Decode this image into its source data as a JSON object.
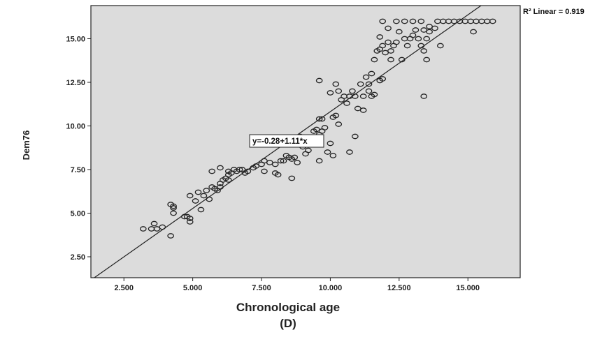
{
  "chart_data": {
    "type": "scatter",
    "xlabel": "Chronological age",
    "xlabel_sub": "(D)",
    "ylabel": "Dem76",
    "xlim": [
      1.3,
      16.9
    ],
    "ylim": [
      1.3,
      16.9
    ],
    "xticks": [
      "2.500",
      "5.000",
      "7.500",
      "10.000",
      "12.500",
      "15.000"
    ],
    "yticks": [
      "2.50",
      "5.00",
      "7.50",
      "10.00",
      "12.50",
      "15.00"
    ],
    "grid": false,
    "fit": {
      "label": "y=-0.28+1.11*x",
      "r2_label": "R² Linear = 0.919",
      "intercept": -0.28,
      "slope": 1.11
    },
    "points": [
      [
        3.2,
        4.1
      ],
      [
        3.5,
        4.1
      ],
      [
        3.6,
        4.4
      ],
      [
        3.7,
        4.1
      ],
      [
        3.9,
        4.2
      ],
      [
        4.2,
        3.7
      ],
      [
        4.3,
        5.0
      ],
      [
        4.3,
        5.3
      ],
      [
        4.2,
        5.5
      ],
      [
        4.3,
        5.4
      ],
      [
        4.7,
        4.8
      ],
      [
        4.8,
        4.8
      ],
      [
        4.9,
        4.7
      ],
      [
        4.9,
        4.5
      ],
      [
        4.9,
        6.0
      ],
      [
        5.1,
        5.7
      ],
      [
        5.2,
        6.2
      ],
      [
        5.3,
        5.2
      ],
      [
        5.4,
        6.0
      ],
      [
        5.5,
        6.3
      ],
      [
        5.6,
        5.8
      ],
      [
        5.7,
        6.5
      ],
      [
        5.8,
        6.4
      ],
      [
        6.0,
        6.7
      ],
      [
        6.1,
        6.9
      ],
      [
        6.0,
        6.5
      ],
      [
        5.9,
        6.3
      ],
      [
        5.7,
        7.4
      ],
      [
        6.2,
        7.0
      ],
      [
        6.3,
        7.2
      ],
      [
        6.3,
        7.4
      ],
      [
        6.4,
        7.3
      ],
      [
        6.5,
        7.5
      ],
      [
        6.6,
        7.4
      ],
      [
        6.7,
        7.5
      ],
      [
        6.8,
        7.5
      ],
      [
        6.9,
        7.3
      ],
      [
        7.0,
        7.4
      ],
      [
        7.2,
        7.6
      ],
      [
        7.3,
        7.7
      ],
      [
        6.3,
        6.9
      ],
      [
        6.0,
        7.6
      ],
      [
        7.5,
        7.8
      ],
      [
        7.6,
        8.0
      ],
      [
        7.6,
        7.4
      ],
      [
        7.8,
        7.9
      ],
      [
        8.0,
        7.8
      ],
      [
        8.0,
        7.3
      ],
      [
        8.1,
        7.2
      ],
      [
        8.2,
        8.0
      ],
      [
        8.3,
        8.0
      ],
      [
        8.4,
        8.3
      ],
      [
        8.5,
        8.2
      ],
      [
        8.6,
        8.1
      ],
      [
        8.7,
        8.2
      ],
      [
        8.8,
        7.9
      ],
      [
        8.6,
        7.0
      ],
      [
        8.8,
        9.0
      ],
      [
        8.9,
        9.4
      ],
      [
        9.0,
        8.8
      ],
      [
        9.1,
        8.4
      ],
      [
        9.2,
        8.6
      ],
      [
        9.3,
        9.2
      ],
      [
        9.4,
        9.7
      ],
      [
        9.5,
        9.8
      ],
      [
        9.6,
        9.5
      ],
      [
        9.7,
        9.7
      ],
      [
        9.8,
        9.9
      ],
      [
        9.6,
        10.4
      ],
      [
        9.7,
        10.4
      ],
      [
        9.6,
        8.0
      ],
      [
        9.9,
        8.5
      ],
      [
        10.0,
        9.0
      ],
      [
        10.1,
        8.3
      ],
      [
        10.1,
        10.5
      ],
      [
        10.2,
        10.6
      ],
      [
        10.3,
        10.1
      ],
      [
        10.4,
        11.5
      ],
      [
        10.5,
        11.7
      ],
      [
        10.6,
        11.3
      ],
      [
        10.7,
        11.7
      ],
      [
        10.8,
        12.0
      ],
      [
        10.9,
        11.7
      ],
      [
        11.0,
        11.0
      ],
      [
        11.1,
        12.4
      ],
      [
        11.2,
        10.9
      ],
      [
        11.2,
        11.7
      ],
      [
        11.3,
        12.8
      ],
      [
        11.4,
        12.0
      ],
      [
        11.5,
        13.0
      ],
      [
        9.6,
        12.6
      ],
      [
        10.2,
        12.4
      ],
      [
        10.3,
        12.0
      ],
      [
        10.0,
        11.9
      ],
      [
        10.7,
        8.5
      ],
      [
        10.9,
        9.4
      ],
      [
        11.5,
        11.7
      ],
      [
        11.8,
        12.6
      ],
      [
        11.9,
        12.7
      ],
      [
        11.6,
        13.8
      ],
      [
        11.7,
        14.3
      ],
      [
        11.8,
        14.4
      ],
      [
        11.9,
        14.6
      ],
      [
        12.0,
        14.2
      ],
      [
        12.1,
        14.8
      ],
      [
        12.2,
        14.3
      ],
      [
        12.3,
        14.6
      ],
      [
        12.4,
        14.8
      ],
      [
        12.5,
        15.4
      ],
      [
        12.6,
        13.8
      ],
      [
        12.7,
        15.0
      ],
      [
        12.8,
        14.6
      ],
      [
        12.9,
        15.0
      ],
      [
        13.0,
        15.2
      ],
      [
        13.1,
        15.5
      ],
      [
        13.2,
        15.0
      ],
      [
        13.3,
        14.6
      ],
      [
        13.4,
        15.5
      ],
      [
        13.5,
        15.0
      ],
      [
        13.6,
        15.4
      ],
      [
        11.8,
        15.1
      ],
      [
        11.9,
        16.0
      ],
      [
        12.1,
        15.6
      ],
      [
        12.4,
        16.0
      ],
      [
        12.7,
        16.0
      ],
      [
        13.0,
        16.0
      ],
      [
        13.3,
        16.0
      ],
      [
        13.6,
        15.7
      ],
      [
        13.8,
        15.6
      ],
      [
        14.0,
        14.6
      ],
      [
        14.1,
        16.0
      ],
      [
        14.3,
        16.0
      ],
      [
        14.5,
        16.0
      ],
      [
        14.7,
        16.0
      ],
      [
        14.9,
        16.0
      ],
      [
        15.1,
        16.0
      ],
      [
        15.3,
        16.0
      ],
      [
        15.5,
        16.0
      ],
      [
        15.7,
        16.0
      ],
      [
        15.9,
        16.0
      ],
      [
        15.2,
        15.4
      ],
      [
        13.9,
        16.0
      ],
      [
        13.4,
        11.7
      ],
      [
        13.5,
        13.8
      ],
      [
        13.4,
        14.3
      ],
      [
        12.2,
        13.8
      ],
      [
        11.6,
        11.8
      ],
      [
        11.4,
        12.4
      ]
    ]
  }
}
